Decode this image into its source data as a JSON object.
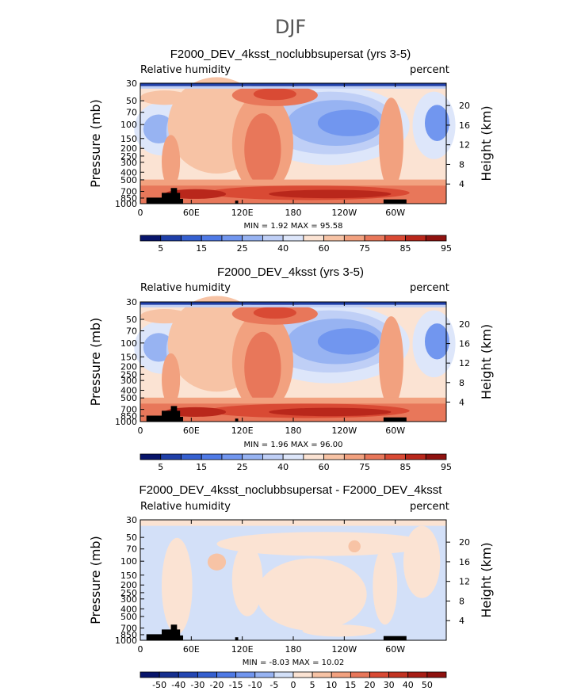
{
  "figure_title": "DJF",
  "chart_data": [
    {
      "type": "heatmap",
      "title": "F2000_DEV_4ksst_noclubbsupersat (yrs 3-5)",
      "left_label": "Relative humidity",
      "right_label": "percent",
      "ylabel": "Pressure (mb)",
      "ylabel_right": "Height (km)",
      "x_ticks": [
        "0",
        "60E",
        "120E",
        "180",
        "120W",
        "60W"
      ],
      "y_ticks": [
        "30",
        "50",
        "70",
        "100",
        "150",
        "200",
        "250",
        "300",
        "400",
        "500",
        "700",
        "850",
        "1000"
      ],
      "y_ticks_right": [
        "20",
        "16",
        "12",
        "8",
        "4"
      ],
      "min_text": "MIN =    1.92  MAX =   95.58",
      "min": 1.92,
      "max": 95.58,
      "colorbar_labels": [
        "5",
        "15",
        "25",
        "40",
        "60",
        "75",
        "85",
        "95"
      ],
      "colorbar_colors": [
        "#08156b",
        "#1f3fa8",
        "#3560d0",
        "#4f7ae6",
        "#7196ef",
        "#97b3f2",
        "#bfcff6",
        "#dde6fa",
        "#fbe3d3",
        "#f7c3a5",
        "#f2a17f",
        "#e8775a",
        "#d94a34",
        "#b9271b",
        "#8f120f"
      ]
    },
    {
      "type": "heatmap",
      "title": "F2000_DEV_4ksst (yrs 3-5)",
      "left_label": "Relative humidity",
      "right_label": "percent",
      "ylabel": "Pressure (mb)",
      "ylabel_right": "Height (km)",
      "x_ticks": [
        "0",
        "60E",
        "120E",
        "180",
        "120W",
        "60W"
      ],
      "y_ticks": [
        "30",
        "50",
        "70",
        "100",
        "150",
        "200",
        "250",
        "300",
        "400",
        "500",
        "700",
        "850",
        "1000"
      ],
      "y_ticks_right": [
        "20",
        "16",
        "12",
        "8",
        "4"
      ],
      "min_text": "MIN =    1.96  MAX =   96.00",
      "min": 1.96,
      "max": 96.0,
      "colorbar_labels": [
        "5",
        "15",
        "25",
        "40",
        "60",
        "75",
        "85",
        "95"
      ],
      "colorbar_colors": [
        "#08156b",
        "#1f3fa8",
        "#3560d0",
        "#4f7ae6",
        "#7196ef",
        "#97b3f2",
        "#bfcff6",
        "#dde6fa",
        "#fbe3d3",
        "#f7c3a5",
        "#f2a17f",
        "#e8775a",
        "#d94a34",
        "#b9271b",
        "#8f120f"
      ]
    },
    {
      "type": "heatmap",
      "title": "F2000_DEV_4ksst_noclubbsupersat - F2000_DEV_4ksst",
      "left_label": "Relative humidity",
      "right_label": "percent",
      "ylabel": "Pressure (mb)",
      "ylabel_right": "Height (km)",
      "x_ticks": [
        "0",
        "60E",
        "120E",
        "180",
        "120W",
        "60W"
      ],
      "y_ticks": [
        "30",
        "50",
        "70",
        "100",
        "150",
        "200",
        "250",
        "300",
        "400",
        "500",
        "700",
        "850",
        "1000"
      ],
      "y_ticks_right": [
        "20",
        "16",
        "12",
        "8",
        "4"
      ],
      "min_text": "MIN =   -8.03  MAX =   10.02",
      "min": -8.03,
      "max": 10.02,
      "colorbar_labels": [
        "-50",
        "-40",
        "-30",
        "-20",
        "-15",
        "-10",
        "-5",
        "0",
        "5",
        "10",
        "15",
        "20",
        "30",
        "40",
        "50"
      ],
      "colorbar_colors": [
        "#08156b",
        "#16308f",
        "#2447b3",
        "#3560d0",
        "#4f7ae6",
        "#7196ef",
        "#97b3f2",
        "#d3e0f8",
        "#fbe3d3",
        "#f7c3a5",
        "#f2a17f",
        "#e8775a",
        "#d94a34",
        "#c23322",
        "#a81e16",
        "#8f120f"
      ]
    }
  ]
}
